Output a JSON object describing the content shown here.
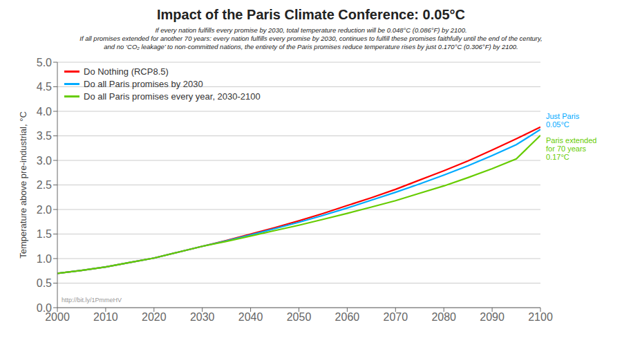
{
  "chart_data": {
    "type": "line",
    "title": "Impact of the Paris Climate Conference: 0.05°C",
    "subtitle": [
      "If every nation fulfills every promise by 2030, total temperature reduction will be 0.048°C (0.086°F) by 2100.",
      "If all promises extended for another 70 years: every nation fulfills every promise by 2030, continues to fulfill these promises faithfully until the end of the century,",
      "and no ‘CO₂ leakage’ to non-committed nations, the entirety of the Paris promises reduce temperature rises by just 0.170°C (0.306°F) by 2100."
    ],
    "ylabel": "Temperature above pre-industrial, °C",
    "x": [
      2000,
      2005,
      2010,
      2015,
      2020,
      2025,
      2030,
      2035,
      2040,
      2045,
      2050,
      2055,
      2060,
      2065,
      2070,
      2075,
      2080,
      2085,
      2090,
      2095,
      2100
    ],
    "series": [
      {
        "name": "Do Nothing (RCP8.5)",
        "color": "#ff0000",
        "values": [
          0.7,
          0.76,
          0.83,
          0.92,
          1.01,
          1.13,
          1.25,
          1.37,
          1.5,
          1.63,
          1.77,
          1.92,
          2.08,
          2.24,
          2.41,
          2.6,
          2.79,
          2.99,
          3.21,
          3.44,
          3.68
        ]
      },
      {
        "name": "Do all Paris promises by 2030",
        "color": "#00aaff",
        "values": [
          0.7,
          0.76,
          0.83,
          0.92,
          1.01,
          1.13,
          1.25,
          1.36,
          1.48,
          1.61,
          1.74,
          1.88,
          2.03,
          2.19,
          2.35,
          2.52,
          2.7,
          2.89,
          3.1,
          3.32,
          3.63
        ]
      },
      {
        "name": "Do all Paris promises every year, 2030-2100",
        "color": "#66cc00",
        "values": [
          0.7,
          0.76,
          0.83,
          0.92,
          1.01,
          1.13,
          1.25,
          1.35,
          1.46,
          1.57,
          1.68,
          1.8,
          1.92,
          2.05,
          2.18,
          2.33,
          2.48,
          2.65,
          2.83,
          3.03,
          3.51
        ]
      }
    ],
    "annotations": [
      {
        "text": "http://bit.ly/1PmmeHV"
      },
      {
        "text": "Just Paris\n0.05°C",
        "color": "#00aaff",
        "series": "Do all Paris promises by 2030"
      },
      {
        "text": "Paris extended\nfor 70 years\n0.17°C",
        "color": "#66cc00",
        "series": "Do all Paris promises every year, 2030-2100"
      }
    ],
    "xlim": [
      2000,
      2100
    ],
    "ylim": [
      0.0,
      5.0
    ],
    "xticks": [
      2000,
      2010,
      2020,
      2030,
      2040,
      2050,
      2060,
      2070,
      2080,
      2090,
      2100
    ],
    "yticks": [
      {
        "value": 0,
        "label": "0.0"
      },
      0.5,
      {
        "value": 1,
        "label": "1.0"
      },
      1.5,
      {
        "value": 2,
        "label": "2.0"
      },
      2.5,
      {
        "value": 3,
        "label": "3.0"
      },
      3.5,
      {
        "value": 4,
        "label": "4.0"
      },
      4.5,
      {
        "value": 5,
        "label": "5.0"
      }
    ],
    "grid": true,
    "legend": "upper left"
  }
}
